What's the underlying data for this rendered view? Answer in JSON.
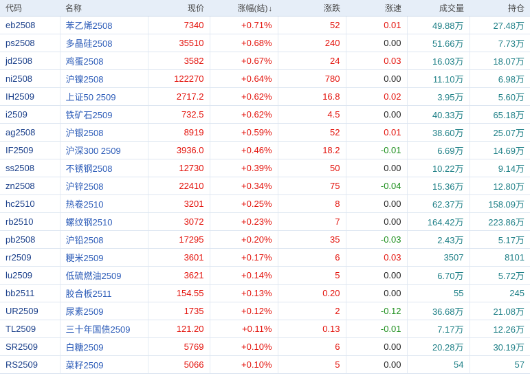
{
  "columns": {
    "code": "代码",
    "name": "名称",
    "price": "现价",
    "change_pct": "涨幅(结)",
    "sort_arrow": "↓",
    "change": "涨跌",
    "speed": "涨速",
    "volume": "成交量",
    "open_interest": "持仓"
  },
  "colors": {
    "up": "#e3120b",
    "down": "#1d8f1d",
    "flat": "#222222",
    "teal": "#1d7f86",
    "code": "#1a3f8a",
    "name": "#2b5bb8"
  },
  "rows": [
    {
      "code": "eb2508",
      "name": "苯乙烯2508",
      "price": "7340",
      "change_pct": "+0.71%",
      "change": "52",
      "speed": "0.01",
      "volume": "49.88万",
      "open_interest": "27.48万"
    },
    {
      "code": "ps2508",
      "name": "多晶硅2508",
      "price": "35510",
      "change_pct": "+0.68%",
      "change": "240",
      "speed": "0.00",
      "volume": "51.66万",
      "open_interest": "7.73万"
    },
    {
      "code": "jd2508",
      "name": "鸡蛋2508",
      "price": "3582",
      "change_pct": "+0.67%",
      "change": "24",
      "speed": "0.03",
      "volume": "16.03万",
      "open_interest": "18.07万"
    },
    {
      "code": "ni2508",
      "name": "沪镍2508",
      "price": "122270",
      "change_pct": "+0.64%",
      "change": "780",
      "speed": "0.00",
      "volume": "11.10万",
      "open_interest": "6.98万"
    },
    {
      "code": "IH2509",
      "name": "上证50 2509",
      "price": "2717.2",
      "change_pct": "+0.62%",
      "change": "16.8",
      "speed": "0.02",
      "volume": "3.95万",
      "open_interest": "5.60万"
    },
    {
      "code": "i2509",
      "name": "铁矿石2509",
      "price": "732.5",
      "change_pct": "+0.62%",
      "change": "4.5",
      "speed": "0.00",
      "volume": "40.33万",
      "open_interest": "65.18万"
    },
    {
      "code": "ag2508",
      "name": "沪银2508",
      "price": "8919",
      "change_pct": "+0.59%",
      "change": "52",
      "speed": "0.01",
      "volume": "38.60万",
      "open_interest": "25.07万"
    },
    {
      "code": "IF2509",
      "name": "沪深300 2509",
      "price": "3936.0",
      "change_pct": "+0.46%",
      "change": "18.2",
      "speed": "-0.01",
      "volume": "6.69万",
      "open_interest": "14.69万"
    },
    {
      "code": "ss2508",
      "name": "不锈钢2508",
      "price": "12730",
      "change_pct": "+0.39%",
      "change": "50",
      "speed": "0.00",
      "volume": "10.22万",
      "open_interest": "9.14万"
    },
    {
      "code": "zn2508",
      "name": "沪锌2508",
      "price": "22410",
      "change_pct": "+0.34%",
      "change": "75",
      "speed": "-0.04",
      "volume": "15.36万",
      "open_interest": "12.80万"
    },
    {
      "code": "hc2510",
      "name": "热卷2510",
      "price": "3201",
      "change_pct": "+0.25%",
      "change": "8",
      "speed": "0.00",
      "volume": "62.37万",
      "open_interest": "158.09万"
    },
    {
      "code": "rb2510",
      "name": "螺纹钢2510",
      "price": "3072",
      "change_pct": "+0.23%",
      "change": "7",
      "speed": "0.00",
      "volume": "164.42万",
      "open_interest": "223.86万"
    },
    {
      "code": "pb2508",
      "name": "沪铅2508",
      "price": "17295",
      "change_pct": "+0.20%",
      "change": "35",
      "speed": "-0.03",
      "volume": "2.43万",
      "open_interest": "5.17万"
    },
    {
      "code": "rr2509",
      "name": "粳米2509",
      "price": "3601",
      "change_pct": "+0.17%",
      "change": "6",
      "speed": "0.03",
      "volume": "3507",
      "open_interest": "8101"
    },
    {
      "code": "lu2509",
      "name": "低硫燃油2509",
      "price": "3621",
      "change_pct": "+0.14%",
      "change": "5",
      "speed": "0.00",
      "volume": "6.70万",
      "open_interest": "5.72万"
    },
    {
      "code": "bb2511",
      "name": "胶合板2511",
      "price": "154.55",
      "change_pct": "+0.13%",
      "change": "0.20",
      "speed": "0.00",
      "volume": "55",
      "open_interest": "245"
    },
    {
      "code": "UR2509",
      "name": "尿素2509",
      "price": "1735",
      "change_pct": "+0.12%",
      "change": "2",
      "speed": "-0.12",
      "volume": "36.68万",
      "open_interest": "21.08万"
    },
    {
      "code": "TL2509",
      "name": "三十年国债2509",
      "price": "121.20",
      "change_pct": "+0.11%",
      "change": "0.13",
      "speed": "-0.01",
      "volume": "7.17万",
      "open_interest": "12.26万"
    },
    {
      "code": "SR2509",
      "name": "白糖2509",
      "price": "5769",
      "change_pct": "+0.10%",
      "change": "6",
      "speed": "0.00",
      "volume": "20.28万",
      "open_interest": "30.19万"
    },
    {
      "code": "RS2509",
      "name": "菜籽2509",
      "price": "5066",
      "change_pct": "+0.10%",
      "change": "5",
      "speed": "0.00",
      "volume": "54",
      "open_interest": "57"
    }
  ]
}
